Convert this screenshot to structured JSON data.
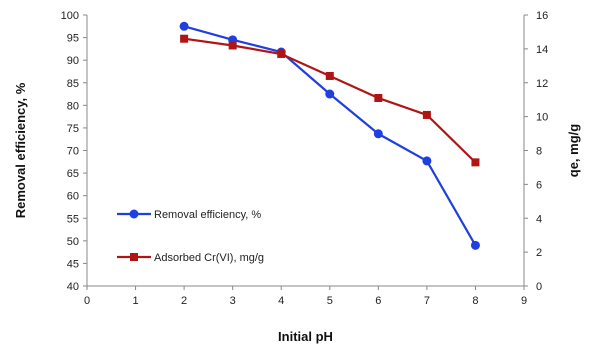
{
  "chart_data": {
    "type": "line",
    "title": "",
    "xlabel": "Initial pH",
    "ylabel_left": "Removal efficiency, %",
    "ylabel_right": "qe, mg/g",
    "xlim": [
      0,
      9
    ],
    "x_ticks": [
      "0",
      "1",
      "2",
      "3",
      "4",
      "5",
      "6",
      "7",
      "8",
      "9"
    ],
    "ylim_left": [
      40,
      100
    ],
    "y_ticks_left": [
      "40",
      "45",
      "50",
      "55",
      "60",
      "65",
      "70",
      "75",
      "80",
      "85",
      "90",
      "95",
      "100"
    ],
    "ylim_right": [
      0,
      16
    ],
    "y_ticks_right": [
      "0",
      "2",
      "4",
      "6",
      "8",
      "10",
      "12",
      "14",
      "16"
    ],
    "grid": false,
    "legend_position": "left-middle",
    "series": [
      {
        "name": "Removal efficiency, %",
        "axis": "left",
        "color": "#1f3fe0",
        "marker": "circle",
        "x": [
          2,
          3,
          4,
          5,
          6,
          7,
          8
        ],
        "values": [
          97.5,
          94.5,
          91.8,
          82.5,
          73.7,
          67.7,
          49.0
        ]
      },
      {
        "name": "Adsorbed Cr(VI), mg/g",
        "axis": "right",
        "color": "#b01515",
        "marker": "square",
        "x": [
          2,
          3,
          4,
          5,
          6,
          7,
          8
        ],
        "values": [
          14.6,
          14.2,
          13.7,
          12.4,
          11.1,
          10.1,
          7.3
        ]
      }
    ]
  }
}
